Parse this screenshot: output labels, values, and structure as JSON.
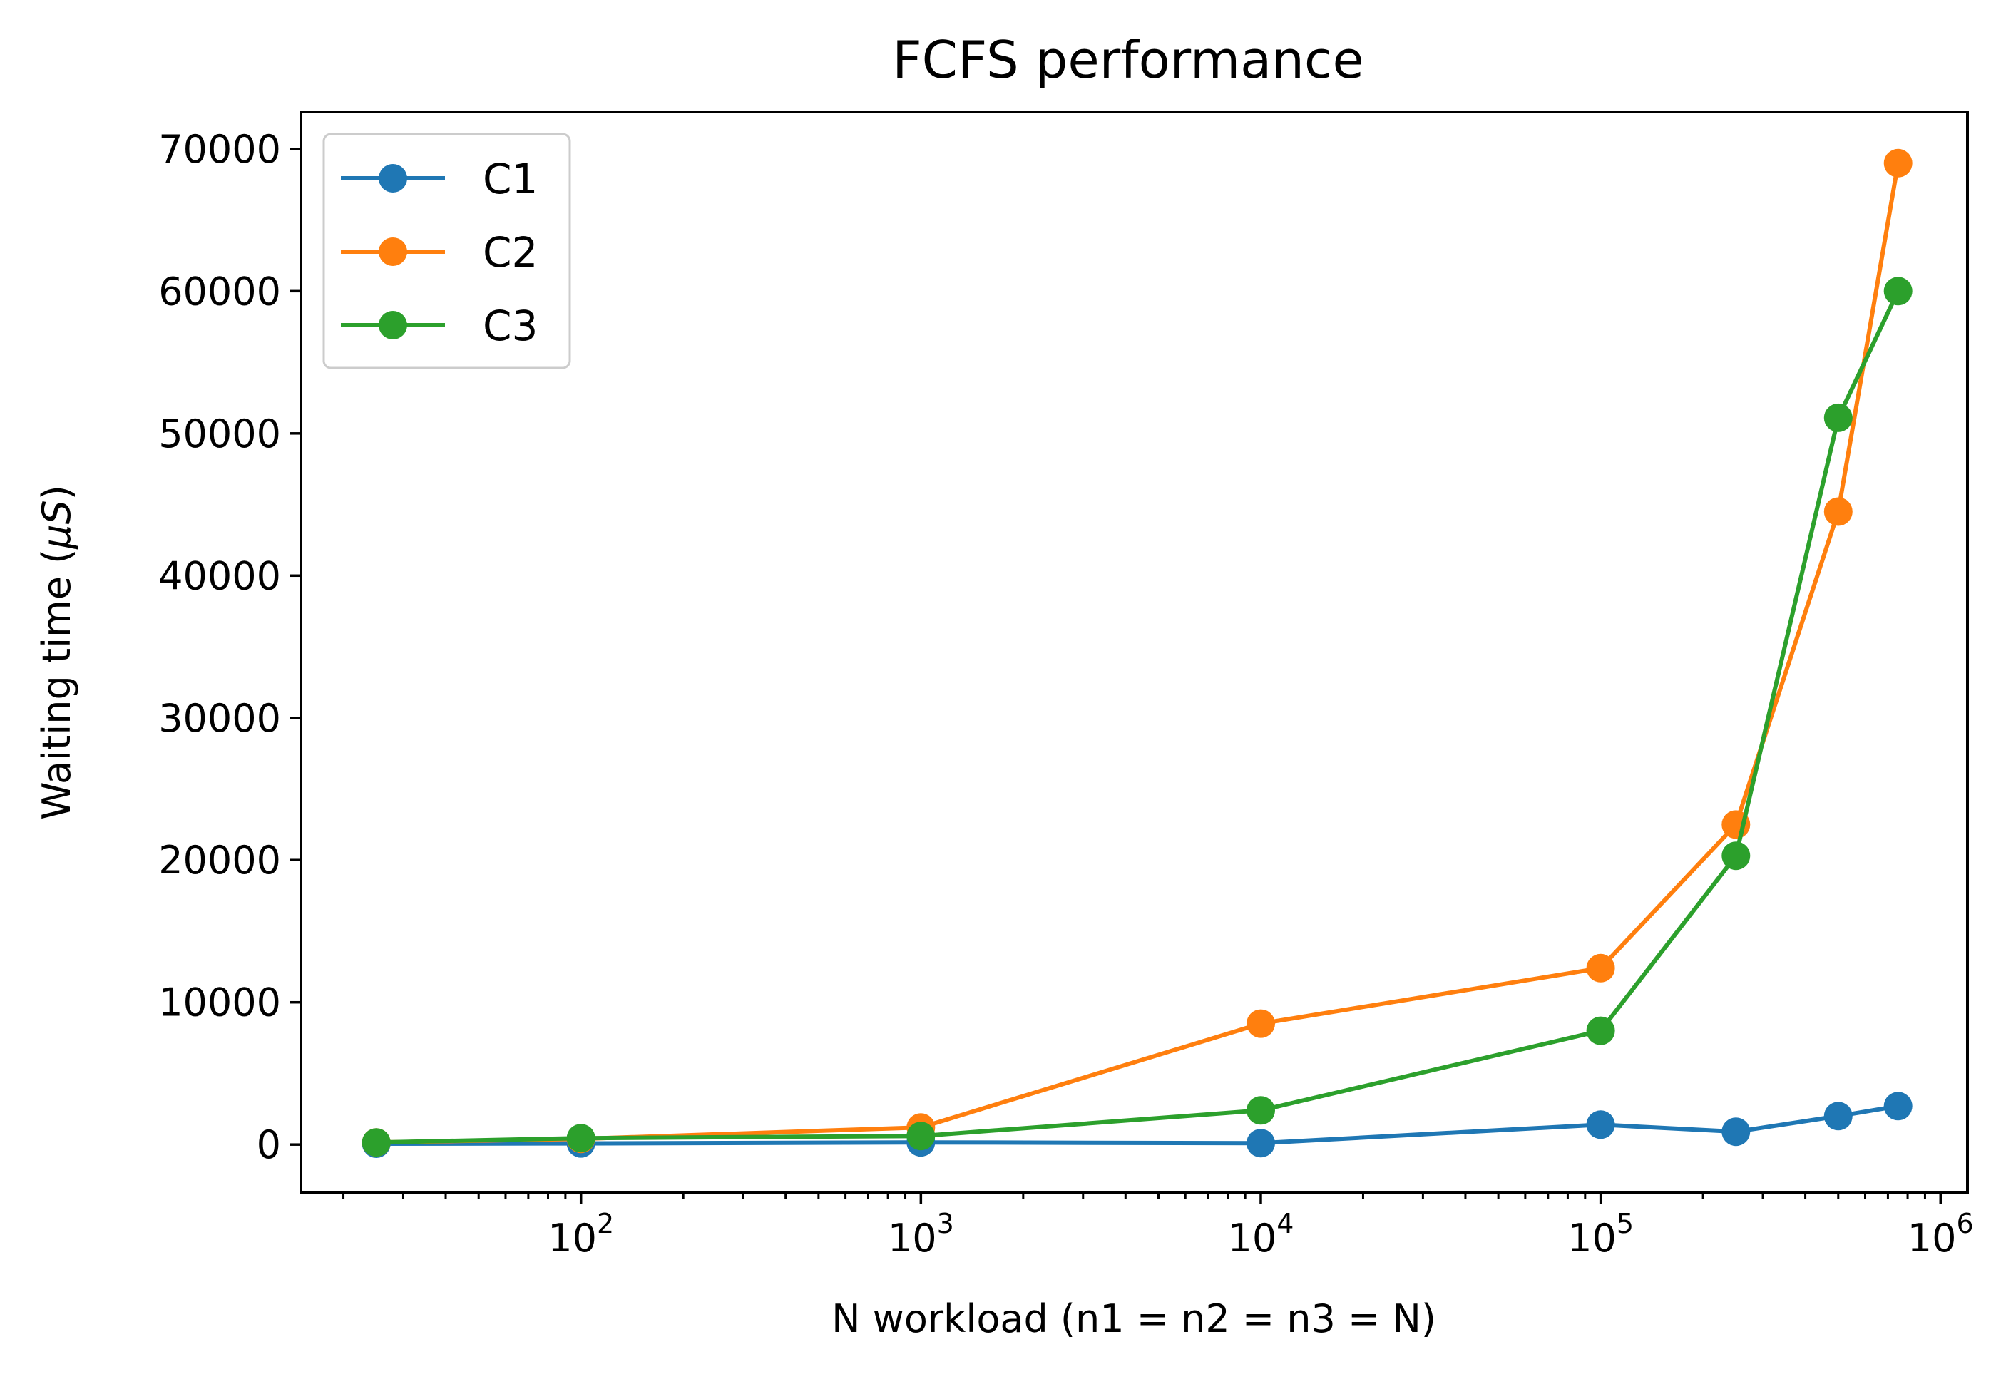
{
  "chart_data": {
    "type": "line",
    "title": "FCFS performance",
    "xlabel": "N workload (n1 = n2 = n3 = N)",
    "ylabel_prefix": "Waiting time (",
    "ylabel_math": "μS",
    "ylabel_suffix": ")",
    "x_scale": "log",
    "xlim": [
      15,
      1200000
    ],
    "ylim": [
      -3400,
      72600
    ],
    "x_ticks": [
      {
        "value": 100,
        "base": "10",
        "exp": "2"
      },
      {
        "value": 1000,
        "base": "10",
        "exp": "3"
      },
      {
        "value": 10000,
        "base": "10",
        "exp": "4"
      },
      {
        "value": 100000,
        "base": "10",
        "exp": "5"
      },
      {
        "value": 1000000,
        "base": "10",
        "exp": "6"
      }
    ],
    "y_ticks": [
      "0",
      "10000",
      "20000",
      "30000",
      "40000",
      "50000",
      "60000",
      "70000"
    ],
    "grid": false,
    "legend_position": "top-left",
    "x": [
      25,
      100,
      1000,
      10000,
      100000,
      250000,
      500000,
      750000
    ],
    "series": [
      {
        "name": "C1",
        "color": "#1f77b4",
        "values": [
          60,
          80,
          150,
          100,
          1400,
          900,
          2000,
          2700
        ]
      },
      {
        "name": "C2",
        "color": "#ff7f0e",
        "values": [
          150,
          400,
          1200,
          8500,
          12400,
          22500,
          44500,
          69000
        ]
      },
      {
        "name": "C3",
        "color": "#2ca02c",
        "values": [
          150,
          450,
          600,
          2400,
          8000,
          20300,
          51100,
          60000
        ]
      }
    ]
  }
}
